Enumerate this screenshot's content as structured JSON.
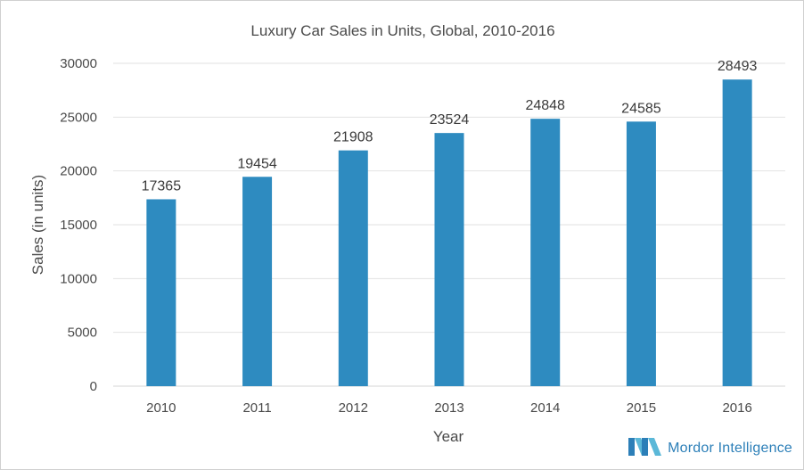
{
  "chart_data": {
    "type": "bar",
    "title": "Luxury Car Sales in Units, Global, 2010-2016",
    "xlabel": "Year",
    "ylabel": "Sales (in units)",
    "categories": [
      "2010",
      "2011",
      "2012",
      "2013",
      "2014",
      "2015",
      "2016"
    ],
    "values": [
      17365,
      19454,
      21908,
      23524,
      24848,
      24585,
      28493
    ],
    "ylim": [
      0,
      30000
    ],
    "yticks": [
      0,
      5000,
      10000,
      15000,
      20000,
      25000,
      30000
    ],
    "grid": true,
    "data_labels": true,
    "bar_color": "#2e8bc0"
  },
  "branding": {
    "name": "Mordor Intelligence",
    "logo_icon": "mordor-intelligence-logo-icon",
    "color": "#2c7fb8"
  }
}
